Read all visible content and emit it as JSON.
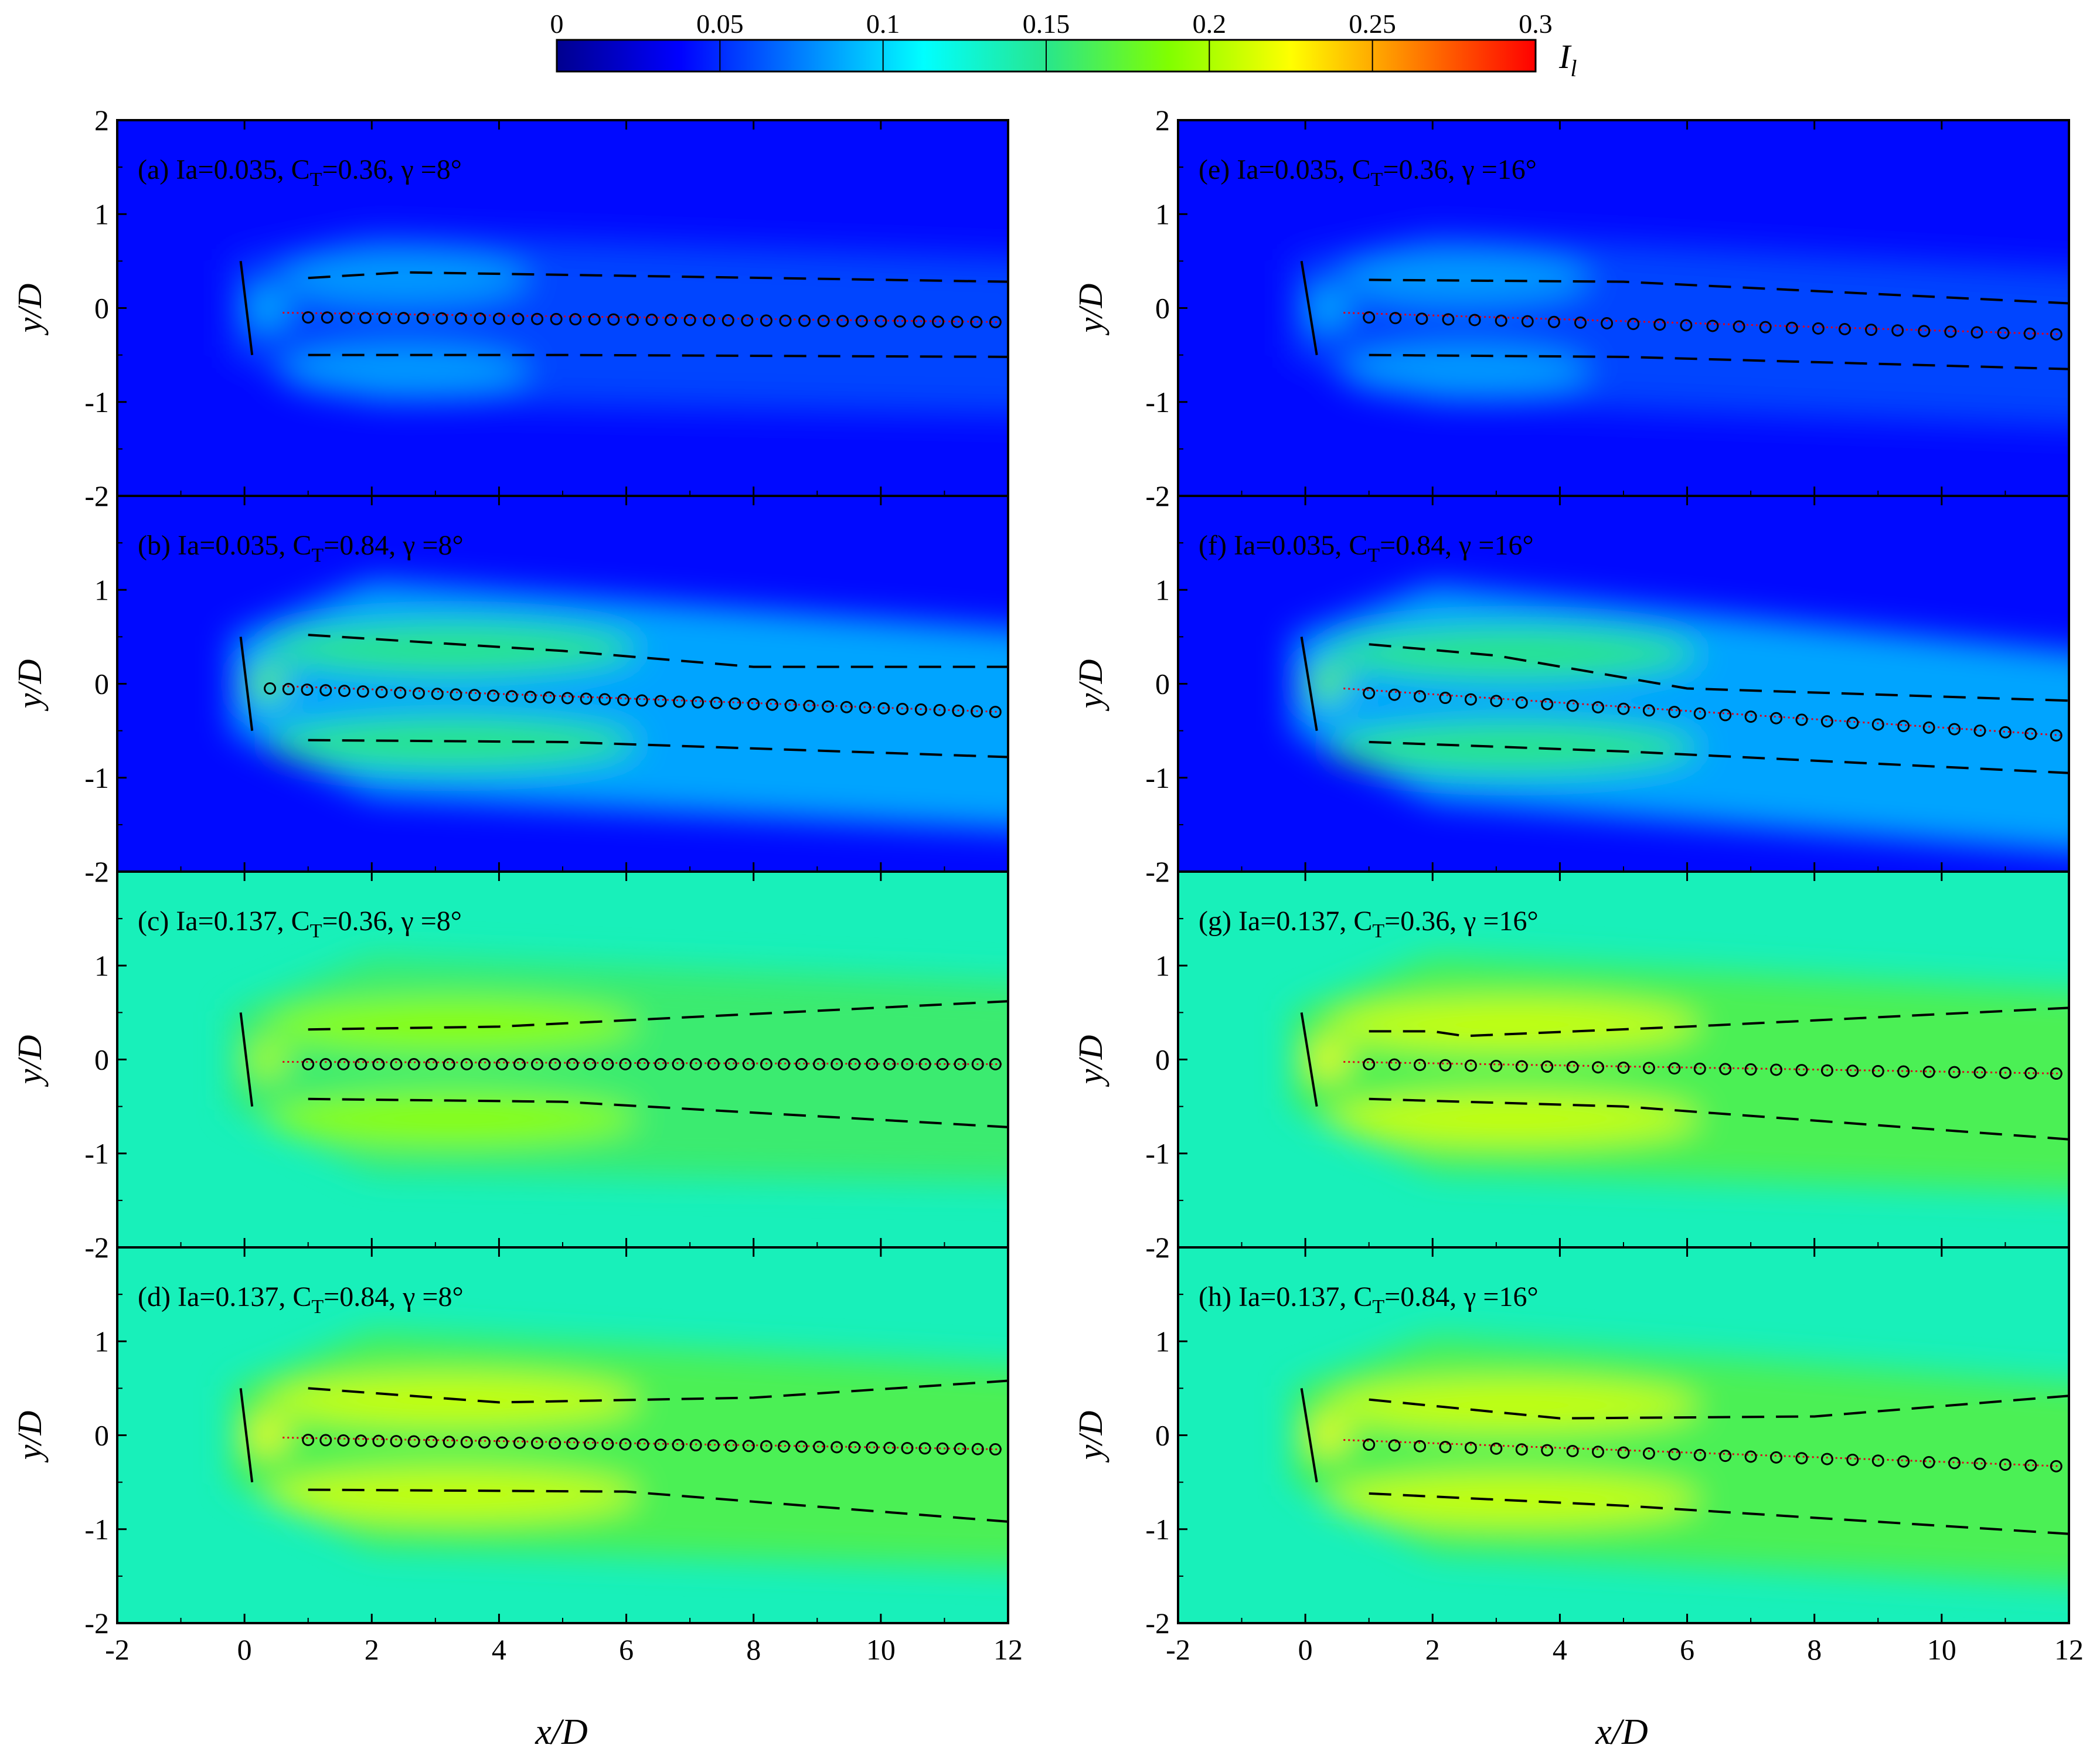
{
  "colorbar": {
    "label": "I",
    "label_sub": "l",
    "ticks": [
      "0",
      "0.05",
      "0.1",
      "0.15",
      "0.2",
      "0.25",
      "0.3"
    ],
    "tick_values": [
      0,
      0.05,
      0.1,
      0.15,
      0.2,
      0.25,
      0.3
    ],
    "range": [
      0,
      0.3
    ],
    "colors": [
      "#00008f",
      "#0000ff",
      "#0080ff",
      "#00ffff",
      "#28e68c",
      "#80ff00",
      "#ffff00",
      "#ff8000",
      "#ff0000"
    ]
  },
  "axes": {
    "xlabel": "x/D",
    "ylabel": "y/D",
    "xlim": [
      -2,
      12
    ],
    "ylim": [
      -2,
      2
    ],
    "xticks": [
      "-2",
      "0",
      "2",
      "4",
      "6",
      "8",
      "10",
      "12"
    ],
    "yticks": [
      "2",
      "1",
      "0",
      "-1",
      "-2"
    ]
  },
  "chart_data": [
    {
      "type": "heatmap",
      "panel": "(a)",
      "Ia": "0.035",
      "CT": "0.36",
      "gamma": "8°",
      "label": [
        "(a)  Ia=0.035, C",
        "T",
        "=0.36, γ =8°"
      ],
      "background_I": 0.04,
      "wake_peak_I": 0.09,
      "center_start": [
        1,
        -0.1
      ],
      "center_end": [
        11.8,
        -0.15
      ],
      "upper_edge": [
        [
          1,
          0.32
        ],
        [
          2.5,
          0.38
        ],
        [
          12,
          0.28
        ]
      ],
      "lower_edge": [
        [
          1,
          -0.5
        ],
        [
          5,
          -0.5
        ],
        [
          12,
          -0.52
        ]
      ],
      "markers": 37
    },
    {
      "type": "heatmap",
      "panel": "(b)",
      "Ia": "0.035",
      "CT": "0.84",
      "gamma": "8°",
      "label": [
        "(b)  Ia=0.035, C",
        "T",
        "=0.84, γ =8°"
      ],
      "background_I": 0.04,
      "wake_peak_I": 0.17,
      "center_start": [
        0.4,
        -0.05
      ],
      "center_end": [
        11.8,
        -0.3
      ],
      "upper_edge": [
        [
          1,
          0.52
        ],
        [
          5,
          0.35
        ],
        [
          8,
          0.18
        ],
        [
          12,
          0.18
        ]
      ],
      "lower_edge": [
        [
          1,
          -0.6
        ],
        [
          5,
          -0.62
        ],
        [
          12,
          -0.78
        ]
      ],
      "markers": 40
    },
    {
      "type": "heatmap",
      "panel": "(c)",
      "Ia": "0.137",
      "CT": "0.36",
      "gamma": "8°",
      "label": [
        "(c)  Ia=0.137, C",
        "T",
        "=0.36, γ =8°"
      ],
      "background_I": 0.135,
      "wake_peak_I": 0.2,
      "center_start": [
        1,
        -0.05
      ],
      "center_end": [
        11.8,
        -0.05
      ],
      "upper_edge": [
        [
          1,
          0.32
        ],
        [
          4,
          0.35
        ],
        [
          12,
          0.62
        ]
      ],
      "lower_edge": [
        [
          1,
          -0.42
        ],
        [
          5,
          -0.45
        ],
        [
          12,
          -0.72
        ]
      ],
      "markers": 40
    },
    {
      "type": "heatmap",
      "panel": "(d)",
      "Ia": "0.137",
      "CT": "0.84",
      "gamma": "8°",
      "label": [
        "(d)  Ia=0.137, C",
        "T",
        "=0.84, γ =8°"
      ],
      "background_I": 0.135,
      "wake_peak_I": 0.22,
      "center_start": [
        1,
        -0.05
      ],
      "center_end": [
        11.8,
        -0.15
      ],
      "upper_edge": [
        [
          1,
          0.5
        ],
        [
          4,
          0.35
        ],
        [
          8,
          0.4
        ],
        [
          12,
          0.58
        ]
      ],
      "lower_edge": [
        [
          1,
          -0.58
        ],
        [
          6,
          -0.6
        ],
        [
          12,
          -0.92
        ]
      ],
      "markers": 40
    },
    {
      "type": "heatmap",
      "panel": "(e)",
      "Ia": "0.035",
      "CT": "0.36",
      "gamma": "16°",
      "label": [
        "(e)  Ia=0.035, C",
        "T",
        "=0.36, γ =16°"
      ],
      "background_I": 0.04,
      "wake_peak_I": 0.09,
      "center_start": [
        1,
        -0.1
      ],
      "center_end": [
        11.8,
        -0.28
      ],
      "upper_edge": [
        [
          1,
          0.3
        ],
        [
          5,
          0.28
        ],
        [
          12,
          0.05
        ]
      ],
      "lower_edge": [
        [
          1,
          -0.5
        ],
        [
          5,
          -0.52
        ],
        [
          12,
          -0.65
        ]
      ],
      "markers": 27
    },
    {
      "type": "heatmap",
      "panel": "(f)",
      "Ia": "0.035",
      "CT": "0.84",
      "gamma": "16°",
      "label": [
        "(f)  Ia=0.035, C",
        "T",
        "=0.84, γ =16°"
      ],
      "background_I": 0.04,
      "wake_peak_I": 0.17,
      "center_start": [
        1,
        -0.1
      ],
      "center_end": [
        11.8,
        -0.55
      ],
      "upper_edge": [
        [
          1,
          0.42
        ],
        [
          3,
          0.3
        ],
        [
          6,
          -0.05
        ],
        [
          12,
          -0.18
        ]
      ],
      "lower_edge": [
        [
          1,
          -0.62
        ],
        [
          5,
          -0.72
        ],
        [
          12,
          -0.95
        ]
      ],
      "markers": 28
    },
    {
      "type": "heatmap",
      "panel": "(g)",
      "Ia": "0.137",
      "CT": "0.36",
      "gamma": "16°",
      "label": [
        "(g)  Ia=0.137, C",
        "T",
        "=0.36, γ =16°"
      ],
      "background_I": 0.135,
      "wake_peak_I": 0.22,
      "center_start": [
        1,
        -0.05
      ],
      "center_end": [
        11.8,
        -0.15
      ],
      "upper_edge": [
        [
          1,
          0.3
        ],
        [
          2,
          0.3
        ],
        [
          2.5,
          0.25
        ],
        [
          6,
          0.35
        ],
        [
          12,
          0.55
        ]
      ],
      "lower_edge": [
        [
          1,
          -0.42
        ],
        [
          5,
          -0.5
        ],
        [
          12,
          -0.85
        ]
      ],
      "markers": 28
    },
    {
      "type": "heatmap",
      "panel": "(h)",
      "Ia": "0.137",
      "CT": "0.84",
      "gamma": "16°",
      "label": [
        "(h)  Ia=0.137, C",
        "T",
        "=0.84, γ =16°"
      ],
      "background_I": 0.135,
      "wake_peak_I": 0.22,
      "center_start": [
        1,
        -0.1
      ],
      "center_end": [
        11.8,
        -0.33
      ],
      "upper_edge": [
        [
          1,
          0.38
        ],
        [
          4,
          0.18
        ],
        [
          8,
          0.2
        ],
        [
          12,
          0.42
        ]
      ],
      "lower_edge": [
        [
          1,
          -0.62
        ],
        [
          5,
          -0.75
        ],
        [
          12,
          -1.05
        ]
      ],
      "markers": 28
    }
  ]
}
